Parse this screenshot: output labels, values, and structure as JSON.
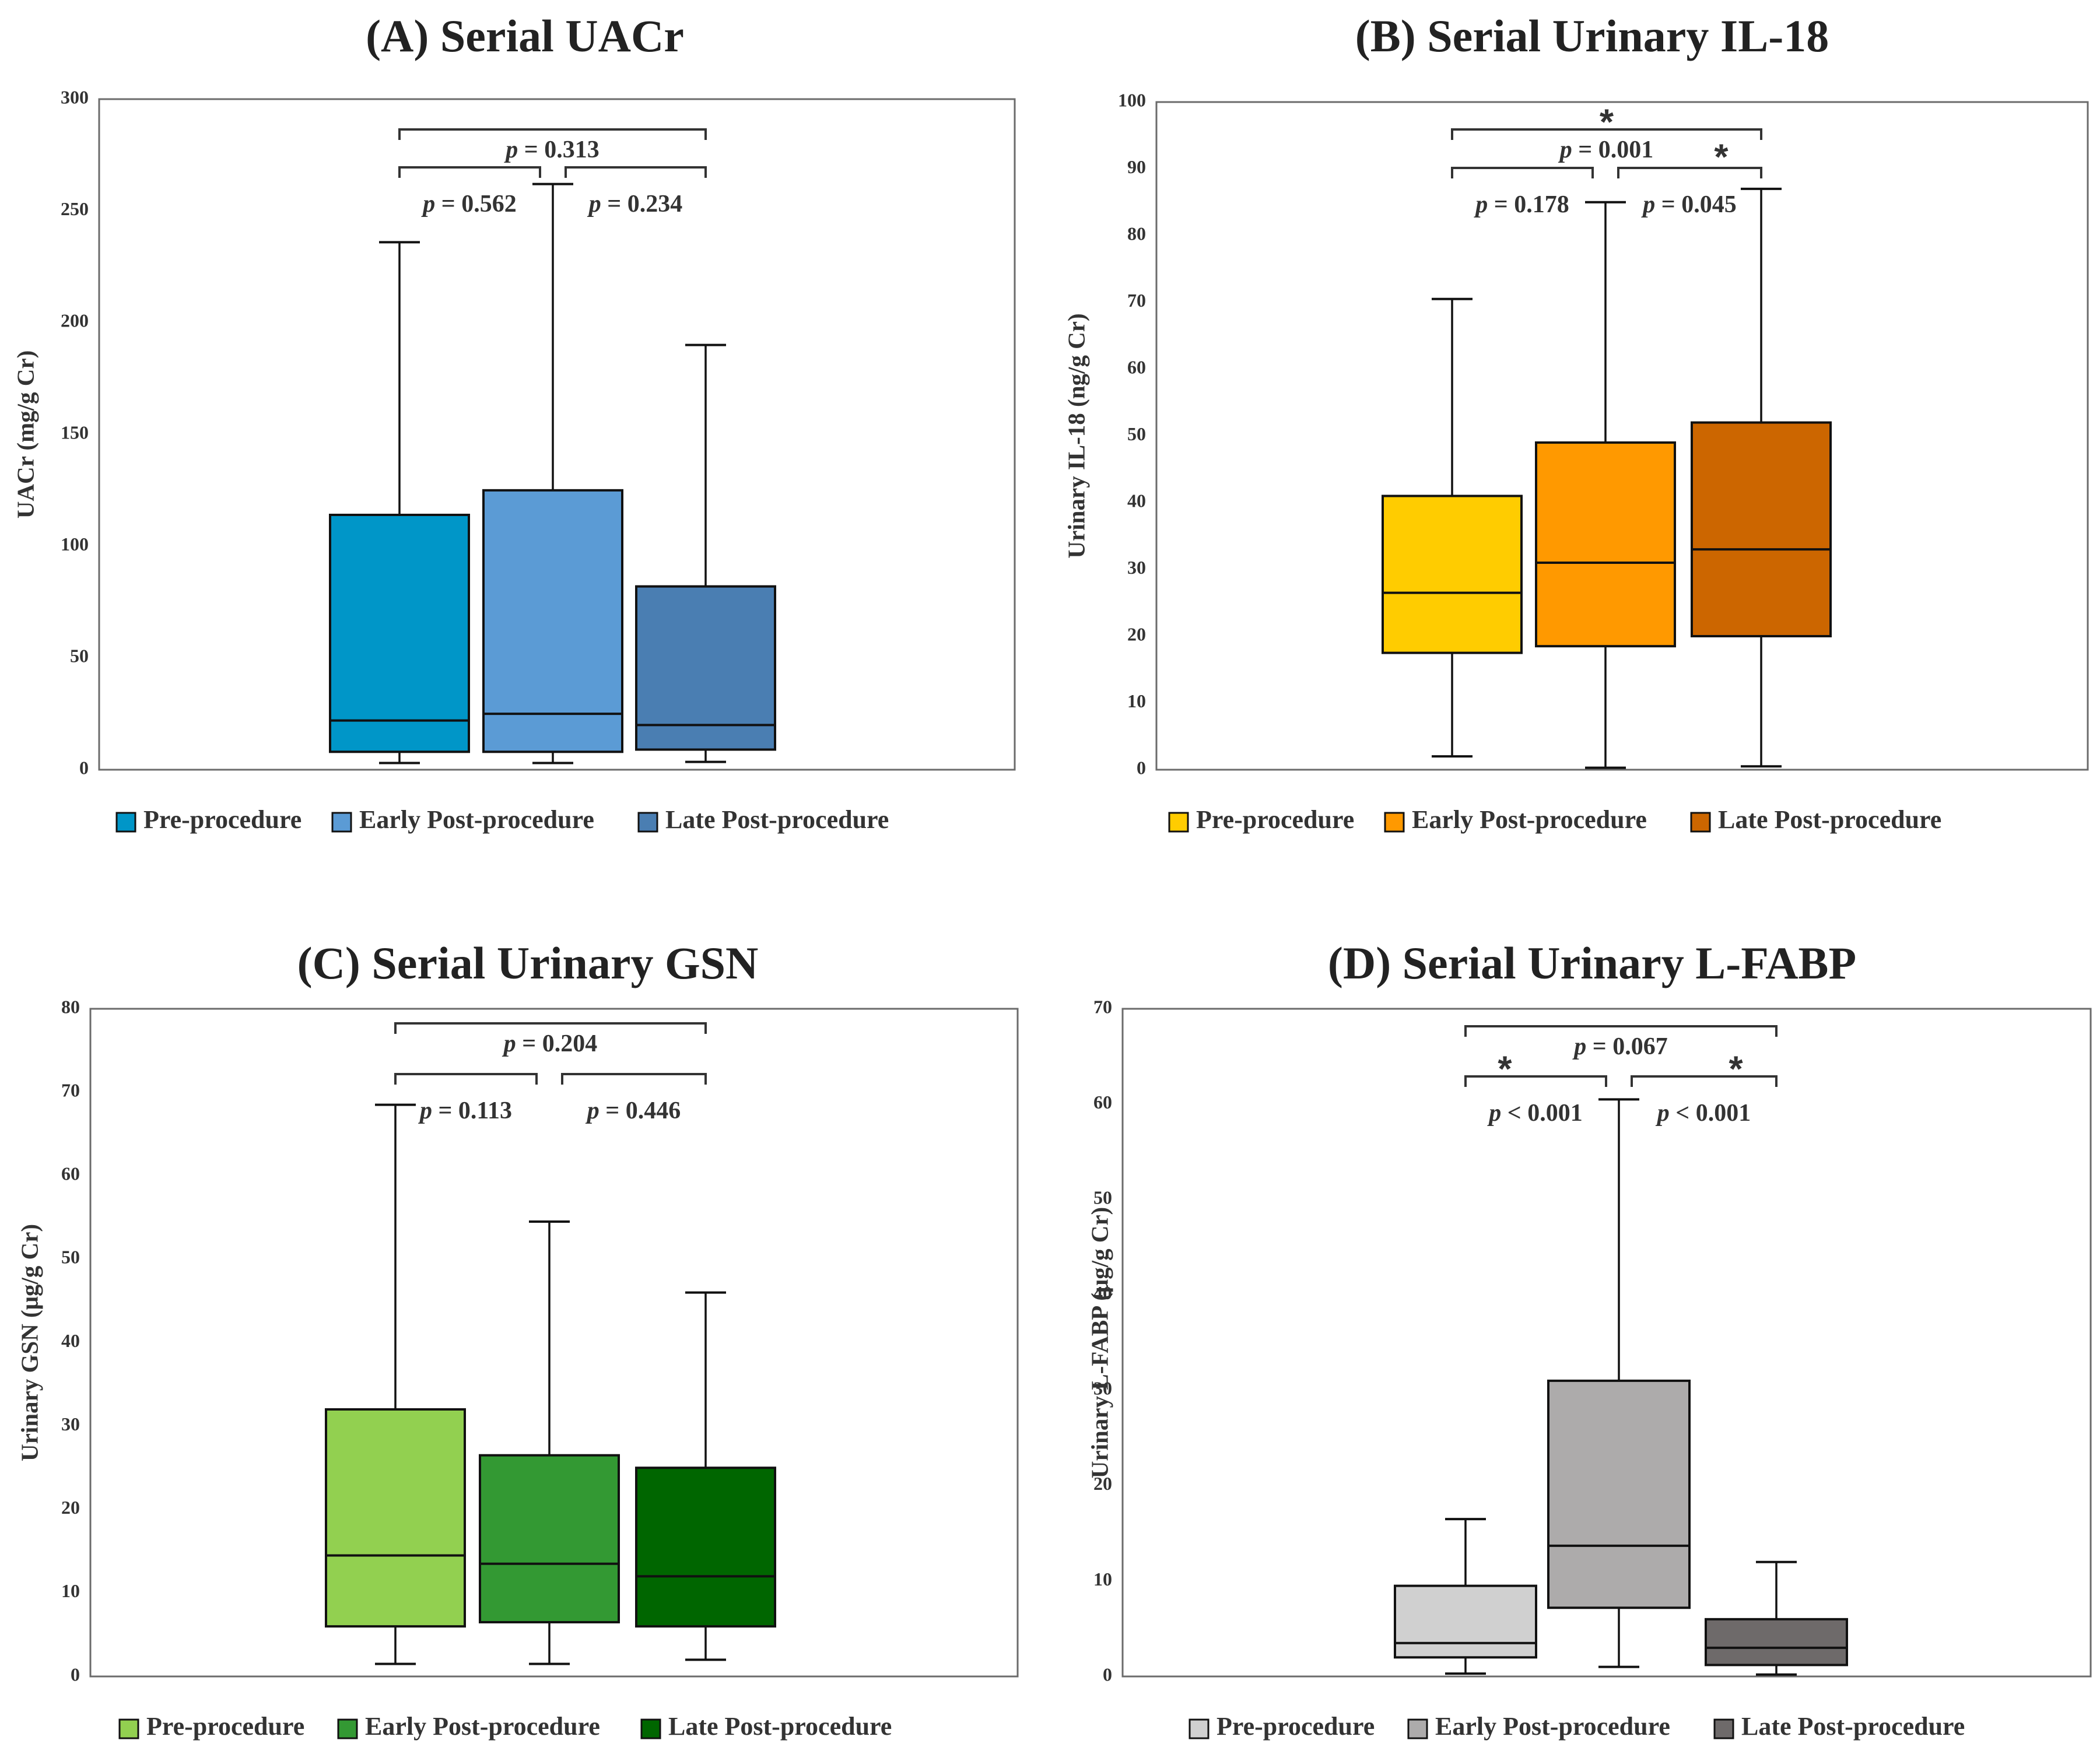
{
  "chart_data": [
    {
      "type": "box",
      "title": "(A) Serial UACr",
      "ylabel": "UACr (mg/g Cr)",
      "ylim": [
        0,
        300
      ],
      "yticks": [
        0,
        50,
        100,
        150,
        200,
        250,
        300
      ],
      "categories": [
        "Pre-procedure",
        "Early Post-procedure",
        "Late Post-procedure"
      ],
      "colors": [
        "#0096C8",
        "#5B9BD5",
        "#4A7EB2"
      ],
      "boxes": [
        {
          "min": 3,
          "q1": 8,
          "median": 22,
          "q3": 114,
          "max": 236
        },
        {
          "min": 3,
          "q1": 8,
          "median": 25,
          "q3": 125,
          "max": 262
        },
        {
          "min": 3.5,
          "q1": 9,
          "median": 20,
          "q3": 82,
          "max": 190
        }
      ],
      "annotations": [
        {
          "pair": [
            0,
            1
          ],
          "p": "0.562",
          "star": false
        },
        {
          "pair": [
            1,
            2
          ],
          "p": "0.234",
          "star": false
        },
        {
          "pair": [
            0,
            2
          ],
          "p": "0.313",
          "star": false
        }
      ]
    },
    {
      "type": "box",
      "title": "(B) Serial Urinary IL-18",
      "ylabel": "Urinary IL-18 (ng/g Cr)",
      "ylim": [
        0,
        100
      ],
      "yticks": [
        0,
        10,
        20,
        30,
        40,
        50,
        60,
        70,
        80,
        90,
        100
      ],
      "categories": [
        "Pre-procedure",
        "Early Post-procedure",
        "Late Post-procedure"
      ],
      "colors": [
        "#FFCC00",
        "#FF9900",
        "#CC6600"
      ],
      "boxes": [
        {
          "min": 2,
          "q1": 17.5,
          "median": 26.5,
          "q3": 41,
          "max": 70.5
        },
        {
          "min": 0.3,
          "q1": 18.5,
          "median": 31,
          "q3": 49,
          "max": 85
        },
        {
          "min": 0.5,
          "q1": 20,
          "median": 33,
          "q3": 52,
          "max": 87
        }
      ],
      "annotations": [
        {
          "pair": [
            0,
            1
          ],
          "p": "0.178",
          "star": false
        },
        {
          "pair": [
            1,
            2
          ],
          "p": "0.045",
          "star": true
        },
        {
          "pair": [
            0,
            2
          ],
          "p": "0.001",
          "star": true
        }
      ]
    },
    {
      "type": "box",
      "title": "(C) Serial Urinary GSN",
      "ylabel": "Urinary GSN (μg/g Cr)",
      "ylim": [
        0,
        80
      ],
      "yticks": [
        0,
        10,
        20,
        30,
        40,
        50,
        60,
        70,
        80
      ],
      "categories": [
        "Pre-procedure",
        "Early Post-procedure",
        "Late Post-procedure"
      ],
      "colors": [
        "#92D050",
        "#339933",
        "#006600"
      ],
      "boxes": [
        {
          "min": 1.5,
          "q1": 6,
          "median": 14.5,
          "q3": 32,
          "max": 68.5
        },
        {
          "min": 1.5,
          "q1": 6.5,
          "median": 13.5,
          "q3": 26.5,
          "max": 54.5
        },
        {
          "min": 2,
          "q1": 6,
          "median": 12,
          "q3": 25,
          "max": 46
        }
      ],
      "annotations": [
        {
          "pair": [
            0,
            1
          ],
          "p": "0.113",
          "star": false
        },
        {
          "pair": [
            1,
            2
          ],
          "p": "0.446",
          "star": false
        },
        {
          "pair": [
            0,
            2
          ],
          "p": "0.204",
          "star": false
        }
      ]
    },
    {
      "type": "box",
      "title": "(D) Serial Urinary L-FABP",
      "ylabel": "Urinary L-FABP (μg/g Cr)",
      "ylim": [
        0,
        70
      ],
      "yticks": [
        0,
        10,
        20,
        30,
        40,
        50,
        60,
        70
      ],
      "categories": [
        "Pre-procedure",
        "Early Post-procedure",
        "Late Post-procedure"
      ],
      "colors": [
        "#D0D0D0",
        "#ADABAB",
        "#6E6A6A"
      ],
      "boxes": [
        {
          "min": 0.3,
          "q1": 2,
          "median": 3.5,
          "q3": 9.5,
          "max": 16.5
        },
        {
          "min": 1,
          "q1": 7.2,
          "median": 13.7,
          "q3": 31,
          "max": 60.5
        },
        {
          "min": 0.2,
          "q1": 1.2,
          "median": 3,
          "q3": 6,
          "max": 12
        }
      ],
      "annotations": [
        {
          "pair": [
            0,
            1
          ],
          "p": "< 0.001",
          "star": true
        },
        {
          "pair": [
            1,
            2
          ],
          "p": "< 0.001",
          "star": true
        },
        {
          "pair": [
            0,
            2
          ],
          "p": "0.067",
          "star": false
        }
      ]
    }
  ]
}
